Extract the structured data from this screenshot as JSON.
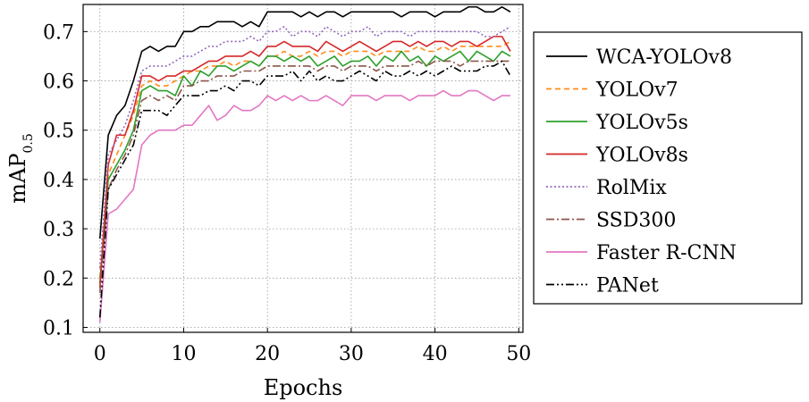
{
  "chart_data": {
    "type": "line",
    "xlabel": "Epochs",
    "ylabel": "mAP",
    "ylabel_sub": "0.5",
    "xlim": [
      -2,
      50.5
    ],
    "ylim": [
      0.09,
      0.755
    ],
    "xticks": [
      0,
      10,
      20,
      30,
      40,
      50
    ],
    "yticks": [
      0.1,
      0.2,
      0.3,
      0.4,
      0.5,
      0.6,
      0.7
    ],
    "grid": true,
    "legend_position": "right-outside",
    "series": [
      {
        "name": "WCA-YOLOv8",
        "color": "#000000",
        "style": "solid",
        "values": [
          0.28,
          0.49,
          0.53,
          0.55,
          0.6,
          0.66,
          0.67,
          0.66,
          0.67,
          0.67,
          0.7,
          0.7,
          0.71,
          0.71,
          0.72,
          0.72,
          0.72,
          0.71,
          0.72,
          0.71,
          0.74,
          0.74,
          0.74,
          0.74,
          0.73,
          0.74,
          0.73,
          0.74,
          0.74,
          0.73,
          0.74,
          0.74,
          0.74,
          0.74,
          0.74,
          0.74,
          0.73,
          0.74,
          0.74,
          0.74,
          0.73,
          0.74,
          0.74,
          0.74,
          0.75,
          0.75,
          0.74,
          0.74,
          0.75,
          0.74
        ]
      },
      {
        "name": "YOLOv7",
        "color": "#ff8c1a",
        "style": "dashed",
        "values": [
          0.2,
          0.41,
          0.45,
          0.49,
          0.53,
          0.59,
          0.6,
          0.59,
          0.59,
          0.6,
          0.61,
          0.62,
          0.62,
          0.63,
          0.63,
          0.64,
          0.63,
          0.64,
          0.64,
          0.63,
          0.65,
          0.65,
          0.66,
          0.65,
          0.65,
          0.66,
          0.65,
          0.66,
          0.66,
          0.65,
          0.66,
          0.66,
          0.66,
          0.65,
          0.66,
          0.66,
          0.66,
          0.66,
          0.67,
          0.66,
          0.66,
          0.67,
          0.66,
          0.67,
          0.67,
          0.67,
          0.67,
          0.67,
          0.67,
          0.68
        ]
      },
      {
        "name": "YOLOv5s",
        "color": "#2ca02c",
        "style": "solid",
        "values": [
          0.19,
          0.4,
          0.43,
          0.46,
          0.5,
          0.58,
          0.59,
          0.58,
          0.58,
          0.57,
          0.61,
          0.59,
          0.62,
          0.61,
          0.63,
          0.63,
          0.62,
          0.63,
          0.64,
          0.63,
          0.65,
          0.65,
          0.64,
          0.65,
          0.64,
          0.65,
          0.63,
          0.64,
          0.65,
          0.63,
          0.64,
          0.64,
          0.65,
          0.63,
          0.65,
          0.64,
          0.66,
          0.64,
          0.65,
          0.63,
          0.65,
          0.64,
          0.65,
          0.66,
          0.64,
          0.66,
          0.65,
          0.64,
          0.66,
          0.65
        ]
      },
      {
        "name": "YOLOv8s",
        "color": "#d62728",
        "style": "solid",
        "values": [
          0.18,
          0.43,
          0.49,
          0.49,
          0.54,
          0.61,
          0.61,
          0.6,
          0.61,
          0.61,
          0.62,
          0.62,
          0.63,
          0.64,
          0.64,
          0.65,
          0.65,
          0.65,
          0.66,
          0.65,
          0.67,
          0.67,
          0.68,
          0.67,
          0.67,
          0.67,
          0.66,
          0.68,
          0.67,
          0.66,
          0.67,
          0.68,
          0.67,
          0.66,
          0.67,
          0.68,
          0.68,
          0.67,
          0.68,
          0.67,
          0.68,
          0.68,
          0.67,
          0.68,
          0.68,
          0.67,
          0.68,
          0.69,
          0.69,
          0.66
        ]
      },
      {
        "name": "RolMix",
        "color": "#9467bd",
        "style": "dotted",
        "values": [
          0.22,
          0.45,
          0.48,
          0.51,
          0.56,
          0.62,
          0.63,
          0.63,
          0.63,
          0.64,
          0.65,
          0.65,
          0.66,
          0.67,
          0.67,
          0.68,
          0.68,
          0.68,
          0.69,
          0.68,
          0.7,
          0.7,
          0.71,
          0.69,
          0.7,
          0.7,
          0.69,
          0.71,
          0.7,
          0.69,
          0.7,
          0.7,
          0.71,
          0.69,
          0.7,
          0.7,
          0.7,
          0.69,
          0.7,
          0.7,
          0.7,
          0.7,
          0.7,
          0.7,
          0.7,
          0.7,
          0.69,
          0.69,
          0.7,
          0.71
        ]
      },
      {
        "name": "SSD300",
        "color": "#8c564b",
        "style": "dashdot",
        "values": [
          0.17,
          0.38,
          0.42,
          0.45,
          0.49,
          0.56,
          0.57,
          0.56,
          0.57,
          0.56,
          0.59,
          0.59,
          0.6,
          0.6,
          0.61,
          0.61,
          0.61,
          0.62,
          0.62,
          0.62,
          0.63,
          0.63,
          0.63,
          0.63,
          0.63,
          0.63,
          0.62,
          0.63,
          0.63,
          0.62,
          0.63,
          0.63,
          0.63,
          0.62,
          0.63,
          0.63,
          0.63,
          0.63,
          0.64,
          0.63,
          0.64,
          0.64,
          0.64,
          0.63,
          0.64,
          0.64,
          0.64,
          0.64,
          0.64,
          0.64
        ]
      },
      {
        "name": "Faster R-CNN",
        "color": "#e377c2",
        "style": "solid",
        "values": [
          0.11,
          0.33,
          0.34,
          0.36,
          0.38,
          0.47,
          0.49,
          0.5,
          0.5,
          0.5,
          0.51,
          0.51,
          0.53,
          0.55,
          0.52,
          0.53,
          0.55,
          0.54,
          0.54,
          0.55,
          0.57,
          0.56,
          0.57,
          0.56,
          0.57,
          0.56,
          0.56,
          0.57,
          0.56,
          0.55,
          0.57,
          0.57,
          0.57,
          0.56,
          0.57,
          0.57,
          0.57,
          0.56,
          0.57,
          0.57,
          0.57,
          0.58,
          0.57,
          0.57,
          0.58,
          0.58,
          0.57,
          0.56,
          0.57,
          0.57
        ]
      },
      {
        "name": "PANet",
        "color": "#000000",
        "style": "dashdotdot",
        "values": [
          0.12,
          0.38,
          0.41,
          0.44,
          0.47,
          0.54,
          0.54,
          0.54,
          0.53,
          0.55,
          0.57,
          0.57,
          0.57,
          0.58,
          0.58,
          0.59,
          0.58,
          0.6,
          0.6,
          0.59,
          0.61,
          0.61,
          0.61,
          0.62,
          0.6,
          0.62,
          0.6,
          0.61,
          0.6,
          0.6,
          0.61,
          0.62,
          0.61,
          0.6,
          0.62,
          0.61,
          0.61,
          0.62,
          0.61,
          0.62,
          0.61,
          0.62,
          0.63,
          0.62,
          0.62,
          0.62,
          0.63,
          0.63,
          0.64,
          0.61
        ]
      }
    ]
  }
}
